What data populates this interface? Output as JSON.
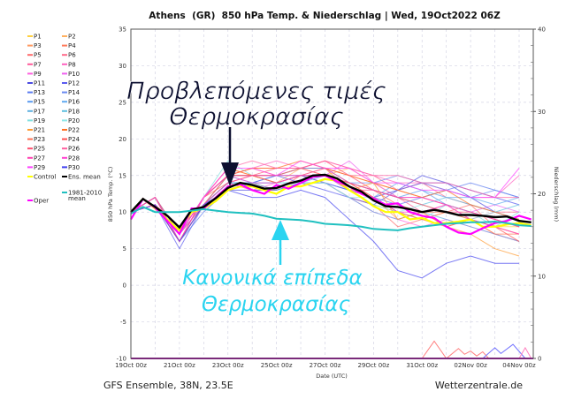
{
  "title": "Athens  (GR)  850 hPa Temp. & Niederschlag | Wed, 19Oct2022 06Z",
  "footer_left": "GFS Ensemble, 38N, 23.5E",
  "footer_right": "Wetterzentrale.de",
  "annotations": {
    "forecast_line1": "Προβλεπόμενες τιμές",
    "forecast_line2": "Θερμοκρασίας",
    "normal_line1": "Κανονικά επίπεδα",
    "normal_line2": "Θερμοκρασίας",
    "forecast_color": "#0d1030",
    "normal_color": "#2ad4f0"
  },
  "chart_data": {
    "type": "line",
    "xlabel": "Date (UTC)",
    "ylabel": "850 hPa Temp. (°C)",
    "y2label": "Niederschlag (mm)",
    "x_unit": "hours since 19Oct 00z",
    "xlim": [
      0,
      398
    ],
    "ylim": [
      -10,
      35
    ],
    "y2lim": [
      0,
      40
    ],
    "grid": true,
    "legend_position": "left-outside",
    "x_ticks": [
      {
        "x": 0,
        "label": "19Oct 00z"
      },
      {
        "x": 48,
        "label": "21Oct 00z"
      },
      {
        "x": 96,
        "label": "23Oct 00z"
      },
      {
        "x": 144,
        "label": "25Oct 00z"
      },
      {
        "x": 192,
        "label": "27Oct 00z"
      },
      {
        "x": 240,
        "label": "29Oct 00z"
      },
      {
        "x": 288,
        "label": "31Oct 00z"
      },
      {
        "x": 336,
        "label": "02Nov 00z"
      },
      {
        "x": 384,
        "label": "04Nov 00z"
      }
    ],
    "y_ticks": [
      "35",
      "30",
      "25",
      "20",
      "15",
      "10",
      "5",
      "0",
      "-5",
      "-10"
    ],
    "y2_ticks": [
      "40",
      "30",
      "20",
      "10",
      "0"
    ],
    "member_x_step_hours": 24,
    "members": [
      {
        "name": "P1",
        "color": "#ffd040",
        "values": [
          10,
          11,
          7,
          11,
          14,
          13,
          13,
          14,
          14,
          12,
          11,
          10,
          9,
          10,
          9,
          8,
          8
        ]
      },
      {
        "name": "P2",
        "color": "#ffb060",
        "values": [
          10,
          11,
          6,
          12,
          15,
          15,
          14,
          16,
          15,
          16,
          14,
          12,
          11,
          10,
          9,
          8,
          7
        ]
      },
      {
        "name": "P3",
        "color": "#ff9a60",
        "values": [
          10,
          11,
          6,
          12,
          16,
          15,
          15,
          16,
          16,
          14,
          12,
          9,
          10,
          8,
          9,
          7,
          6
        ]
      },
      {
        "name": "P4",
        "color": "#ff7a5a",
        "values": [
          10,
          12,
          7,
          12,
          15,
          16,
          15,
          16,
          16,
          15,
          14,
          13,
          12,
          11,
          10,
          9,
          8
        ]
      },
      {
        "name": "P5",
        "color": "#ff6a6a",
        "values": [
          10,
          11,
          8,
          11,
          14,
          14,
          13,
          15,
          14,
          12,
          11,
          8,
          9,
          10,
          11,
          8,
          7
        ]
      },
      {
        "name": "P6",
        "color": "#ff6a8a",
        "values": [
          10,
          12,
          6,
          11,
          15,
          16,
          16,
          16,
          16,
          15,
          15,
          13,
          14,
          12,
          11,
          10,
          10
        ]
      },
      {
        "name": "P7",
        "color": "#ff5a9a",
        "values": [
          10,
          11,
          7,
          12,
          16,
          15,
          14,
          15,
          15,
          13,
          13,
          12,
          10,
          11,
          9,
          10,
          9
        ]
      },
      {
        "name": "P8",
        "color": "#ff60c0",
        "values": [
          10,
          12,
          7,
          12,
          15,
          16,
          17,
          16,
          17,
          16,
          15,
          14,
          14,
          13,
          12,
          12,
          15
        ]
      },
      {
        "name": "P9",
        "color": "#ff60e0",
        "values": [
          10,
          11,
          6,
          11,
          14,
          13,
          14,
          15,
          14,
          12,
          10,
          9,
          8,
          9,
          8,
          7,
          6
        ]
      },
      {
        "name": "P10",
        "color": "#f060f0",
        "values": [
          10,
          11,
          7,
          12,
          15,
          15,
          15,
          16,
          15,
          17,
          14,
          12,
          12,
          11,
          10,
          11,
          10
        ]
      },
      {
        "name": "P11",
        "color": "#4a4ae0",
        "values": [
          10,
          12,
          6,
          11,
          13,
          13,
          13,
          14,
          14,
          13,
          12,
          13,
          15,
          14,
          12,
          10,
          9
        ]
      },
      {
        "name": "P12",
        "color": "#5a5af0",
        "values": [
          10,
          11,
          5,
          11,
          14,
          14,
          15,
          14,
          13,
          12,
          11,
          13,
          14,
          14,
          13,
          12,
          11
        ]
      },
      {
        "name": "P13",
        "color": "#5a7af0",
        "values": [
          10,
          11,
          6,
          10,
          13,
          14,
          15,
          15,
          14,
          13,
          12,
          11,
          12,
          13,
          14,
          13,
          12
        ]
      },
      {
        "name": "P14",
        "color": "#6a8af0",
        "values": [
          10,
          11,
          7,
          11,
          14,
          14,
          14,
          15,
          15,
          14,
          14,
          15,
          14,
          13,
          12,
          13,
          12
        ]
      },
      {
        "name": "P15",
        "color": "#5a9af0",
        "values": [
          10,
          12,
          7,
          12,
          15,
          15,
          15,
          16,
          16,
          14,
          13,
          12,
          13,
          11,
          10,
          9,
          8
        ]
      },
      {
        "name": "P16",
        "color": "#60aaf0",
        "values": [
          10,
          11,
          6,
          11,
          14,
          14,
          14,
          14,
          15,
          13,
          12,
          14,
          13,
          12,
          12,
          11,
          12
        ]
      },
      {
        "name": "P17",
        "color": "#60b0e0",
        "values": [
          10,
          11,
          7,
          11,
          15,
          14,
          13,
          14,
          14,
          12,
          10,
          9,
          10,
          9,
          8,
          7,
          6
        ]
      },
      {
        "name": "P18",
        "color": "#60c0e0",
        "values": [
          10,
          12,
          7,
          11,
          14,
          14,
          14,
          15,
          15,
          14,
          13,
          12,
          11,
          12,
          11,
          10,
          11
        ]
      },
      {
        "name": "P19",
        "color": "#80e0e0",
        "values": [
          10,
          12,
          6,
          12,
          17,
          15,
          14,
          15,
          15,
          13,
          11,
          10,
          9,
          11,
          10,
          8,
          10
        ]
      },
      {
        "name": "P20",
        "color": "#90e8e8",
        "values": [
          10,
          11,
          7,
          11,
          15,
          14,
          14,
          14,
          14,
          12,
          12,
          10,
          11,
          10,
          9,
          10,
          9
        ]
      },
      {
        "name": "P21",
        "color": "#ff9a30",
        "values": [
          10,
          11,
          6,
          12,
          16,
          15,
          14,
          15,
          16,
          13,
          14,
          9,
          10,
          8,
          7,
          5,
          4
        ]
      },
      {
        "name": "P22",
        "color": "#ff7020",
        "values": [
          10,
          12,
          6,
          12,
          15,
          16,
          16,
          17,
          16,
          15,
          14,
          13,
          12,
          13,
          11,
          10,
          9
        ]
      },
      {
        "name": "P23",
        "color": "#ff7050",
        "values": [
          10,
          11,
          7,
          12,
          14,
          15,
          15,
          16,
          15,
          14,
          13,
          11,
          10,
          10,
          9,
          7,
          7
        ]
      },
      {
        "name": "P24",
        "color": "#ff5050",
        "values": [
          10,
          11,
          6,
          11,
          15,
          15,
          14,
          15,
          15,
          14,
          12,
          10,
          9,
          8,
          9,
          8,
          6
        ]
      },
      {
        "name": "P25",
        "color": "#ff5070",
        "values": [
          10,
          12,
          7,
          12,
          15,
          15,
          16,
          16,
          17,
          15,
          13,
          12,
          11,
          10,
          10,
          9,
          8
        ]
      },
      {
        "name": "P26",
        "color": "#ff60a0",
        "values": [
          10,
          11,
          6,
          12,
          16,
          17,
          16,
          16,
          17,
          16,
          15,
          15,
          14,
          14,
          13,
          12,
          12
        ]
      },
      {
        "name": "P27",
        "color": "#ff40b0",
        "values": [
          10,
          11,
          7,
          11,
          14,
          15,
          15,
          15,
          16,
          14,
          13,
          12,
          12,
          11,
          10,
          9,
          8
        ]
      },
      {
        "name": "P28",
        "color": "#ff40d0",
        "values": [
          10,
          12,
          6,
          12,
          15,
          14,
          14,
          15,
          15,
          13,
          12,
          10,
          10,
          11,
          9,
          8,
          7
        ]
      },
      {
        "name": "P29",
        "color": "#ff40ff",
        "values": [
          10,
          11,
          7,
          12,
          16,
          16,
          15,
          17,
          16,
          16,
          14,
          14,
          13,
          13,
          12,
          12,
          16
        ]
      },
      {
        "name": "P30",
        "color": "#4040f0",
        "values": [
          10,
          11,
          6,
          11,
          13,
          12,
          12,
          13,
          12,
          9,
          6,
          2,
          1,
          3,
          4,
          3,
          3
        ]
      }
    ],
    "main_x_step_hours": 12,
    "series": [
      {
        "name": "Control",
        "color": "#ffff00",
        "values": [
          10,
          11.8,
          10.5,
          9,
          7.5,
          10,
          10.5,
          11.5,
          13,
          13.5,
          13.5,
          13,
          12.5,
          13.5,
          13.5,
          14,
          14.5,
          14.3,
          13,
          12,
          10.8,
          10,
          10,
          9,
          9.2,
          8.5,
          8.5,
          8.7,
          9,
          8,
          8,
          8.3,
          8.5,
          8.2
        ]
      },
      {
        "name": "Oper",
        "color": "#ff00ff",
        "values": [
          9,
          11.8,
          10.6,
          8.8,
          7,
          10.5,
          10.5,
          12,
          13.5,
          13.8,
          13,
          12.5,
          13.7,
          13.2,
          14,
          14.8,
          15,
          14.2,
          13.5,
          12.5,
          11.8,
          11,
          11.2,
          10,
          9.5,
          9.2,
          8,
          7.2,
          7,
          7.8,
          8.5,
          8.8,
          9.5,
          9
        ]
      },
      {
        "name": "Ens. mean",
        "color": "#000000",
        "values": [
          10,
          11.8,
          10.7,
          9.5,
          7.9,
          10.3,
          10.7,
          11.9,
          13.3,
          14,
          13.7,
          13.2,
          13.3,
          13.9,
          14.3,
          15,
          15.1,
          14.6,
          13.5,
          12.8,
          11.6,
          10.8,
          10.7,
          10.4,
          10,
          10.3,
          10,
          9.6,
          9.6,
          9.5,
          9.3,
          9.4,
          8.8,
          8.6
        ]
      },
      {
        "name": "1981-2010 mean",
        "color": "#20c0c0",
        "values": [
          9.8,
          10.7,
          10,
          10,
          10,
          10.2,
          10.4,
          10.2,
          10,
          9.9,
          9.8,
          9.5,
          9.1,
          9,
          8.9,
          8.7,
          8.4,
          8.3,
          8.2,
          8,
          7.7,
          7.6,
          7.5,
          7.8,
          8,
          8.2,
          8.4,
          8.5,
          8.6,
          8.6,
          8.7,
          8.5,
          8.2,
          8.1
        ]
      }
    ],
    "precipitation": [
      {
        "name": "P24",
        "color": "#ff8080",
        "points": [
          [
            288,
            0
          ],
          [
            300,
            2.1
          ],
          [
            312,
            0
          ],
          [
            324,
            1.2
          ],
          [
            330,
            0.5
          ],
          [
            336,
            0.9
          ],
          [
            342,
            0.3
          ],
          [
            348,
            0.8
          ],
          [
            354,
            0
          ]
        ]
      },
      {
        "name": "P12",
        "color": "#7070ff",
        "points": [
          [
            348,
            0
          ],
          [
            360,
            1.3
          ],
          [
            366,
            0.6
          ],
          [
            378,
            1.7
          ],
          [
            390,
            0
          ]
        ]
      },
      {
        "name": "P8",
        "color": "#ff80c0",
        "points": [
          [
            384,
            0
          ],
          [
            390,
            1.3
          ],
          [
            396,
            0
          ]
        ]
      },
      {
        "name": "Oper",
        "color": "#a000a0",
        "points": [
          [
            0,
            0
          ],
          [
            398,
            0
          ]
        ]
      }
    ],
    "legend": [
      {
        "label": "P1",
        "color": "#ffd040"
      },
      {
        "label": "P2",
        "color": "#ffb060"
      },
      {
        "label": "P3",
        "color": "#ff9a60"
      },
      {
        "label": "P4",
        "color": "#ff7a5a"
      },
      {
        "label": "P5",
        "color": "#ff6a6a"
      },
      {
        "label": "P6",
        "color": "#ff6a8a"
      },
      {
        "label": "P7",
        "color": "#ff5a9a"
      },
      {
        "label": "P8",
        "color": "#ff60c0"
      },
      {
        "label": "P9",
        "color": "#ff60e0"
      },
      {
        "label": "P10",
        "color": "#f060f0"
      },
      {
        "label": "P11",
        "color": "#4a4ae0"
      },
      {
        "label": "P12",
        "color": "#5a5af0"
      },
      {
        "label": "P13",
        "color": "#5a7af0"
      },
      {
        "label": "P14",
        "color": "#6a8af0"
      },
      {
        "label": "P15",
        "color": "#5a9af0"
      },
      {
        "label": "P16",
        "color": "#60aaf0"
      },
      {
        "label": "P17",
        "color": "#60b0e0"
      },
      {
        "label": "P18",
        "color": "#60c0e0"
      },
      {
        "label": "P19",
        "color": "#80e0e0"
      },
      {
        "label": "P20",
        "color": "#90e8e8"
      },
      {
        "label": "P21",
        "color": "#ff9a30"
      },
      {
        "label": "P22",
        "color": "#ff7020"
      },
      {
        "label": "P23",
        "color": "#ff7050"
      },
      {
        "label": "P24",
        "color": "#ff5050"
      },
      {
        "label": "P25",
        "color": "#ff5070"
      },
      {
        "label": "P26",
        "color": "#ff60a0"
      },
      {
        "label": "P27",
        "color": "#ff40b0"
      },
      {
        "label": "P28",
        "color": "#ff40d0"
      },
      {
        "label": "P29",
        "color": "#ff40ff"
      },
      {
        "label": "P30",
        "color": "#4040f0"
      },
      {
        "label": "Control",
        "color": "#ffff00"
      },
      {
        "label": "Ens. mean",
        "color": "#000000"
      },
      {
        "label": "1981-2010 mean",
        "color": "#20c0c0"
      },
      {
        "label": "Oper",
        "color": "#ff00ff"
      }
    ]
  }
}
